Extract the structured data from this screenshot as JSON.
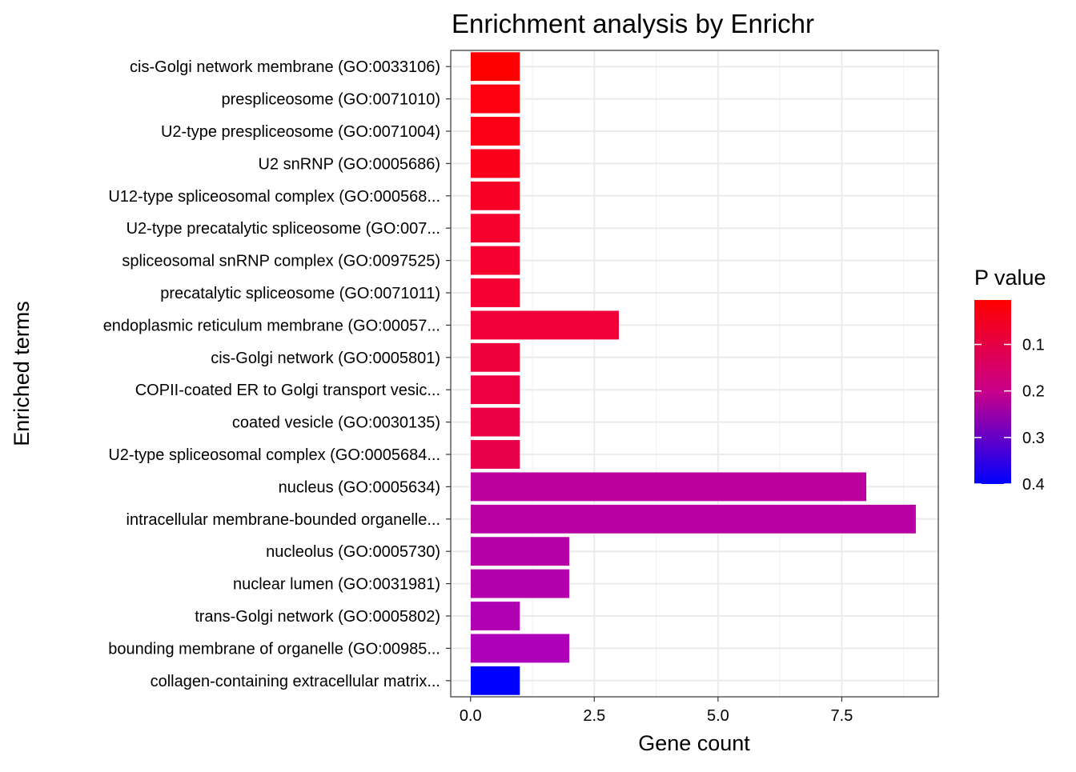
{
  "chart_data": {
    "type": "bar",
    "orientation": "horizontal",
    "title": "Enrichment analysis by Enrichr",
    "xlabel": "Gene count",
    "ylabel": "Enriched terms",
    "xlim": [
      -0.4,
      9.45
    ],
    "x_ticks": [
      0,
      2.5,
      5,
      7.5
    ],
    "x_tick_labels": [
      "0.0",
      "2.5",
      "5.0",
      "7.5"
    ],
    "grid": true,
    "legend": {
      "title": "P value",
      "placement": "right",
      "type": "colorbar",
      "low_color": "#FF0000",
      "high_color": "#0000FF",
      "range": [
        0.0045,
        0.4
      ],
      "ticks": [
        0.1,
        0.2,
        0.3,
        0.4
      ],
      "tick_labels": [
        "0.1",
        "0.2",
        "0.3",
        "0.4"
      ]
    },
    "categories": [
      "cis-Golgi network membrane (GO:0033106)",
      "prespliceosome (GO:0071010)",
      "U2-type prespliceosome (GO:0071004)",
      "U2 snRNP (GO:0005686)",
      "U12-type spliceosomal complex (GO:000568...",
      "U2-type precatalytic spliceosome (GO:007...",
      "spliceosomal snRNP complex (GO:0097525)",
      "precatalytic spliceosome (GO:0071011)",
      "endoplasmic reticulum membrane (GO:00057...",
      "cis-Golgi network (GO:0005801)",
      "COPII-coated ER to Golgi transport vesic...",
      "coated vesicle (GO:0030135)",
      "U2-type spliceosomal complex (GO:0005684...",
      "nucleus (GO:0005634)",
      "intracellular membrane-bounded organelle...",
      "nucleolus (GO:0005730)",
      "nuclear lumen (GO:0031981)",
      "trans-Golgi network (GO:0005802)",
      "bounding membrane of organelle (GO:00985...",
      "collagen-containing extracellular matrix..."
    ],
    "values": [
      1,
      1,
      1,
      1,
      1,
      1,
      1,
      1,
      3,
      1,
      1,
      1,
      1,
      8,
      9,
      2,
      2,
      1,
      2,
      1
    ],
    "colors": [
      "#FF0000",
      "#FF0010",
      "#FC0016",
      "#FB001B",
      "#F70028",
      "#F6002D",
      "#F5002F",
      "#F40032",
      "#F00036",
      "#EE003C",
      "#EC0042",
      "#EB0044",
      "#E8004A",
      "#BC00A0",
      "#B700A4",
      "#B500A8",
      "#B300AC",
      "#AF00B3",
      "#AD00B8",
      "#0000FF"
    ]
  }
}
